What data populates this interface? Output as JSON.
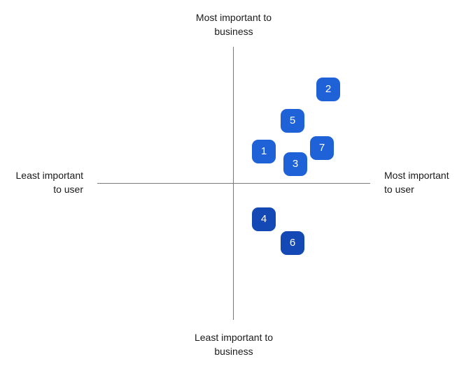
{
  "labels": {
    "top_line1": "Most important to",
    "top_line2": "business",
    "bottom_line1": "Least important to",
    "bottom_line2": "business",
    "left_line1": "Least important",
    "left_line2": "to user",
    "right_line1": "Most important",
    "right_line2": "to user"
  },
  "colors": {
    "upper_marker": "#1f62d8",
    "lower_marker": "#1448b4",
    "axis": "#7a7a7a"
  },
  "markers": [
    {
      "label": "1",
      "quadrant": "upper-right"
    },
    {
      "label": "2",
      "quadrant": "upper-right"
    },
    {
      "label": "3",
      "quadrant": "upper-right"
    },
    {
      "label": "4",
      "quadrant": "lower-right"
    },
    {
      "label": "5",
      "quadrant": "upper-right"
    },
    {
      "label": "6",
      "quadrant": "lower-right"
    },
    {
      "label": "7",
      "quadrant": "upper-right"
    }
  ]
}
